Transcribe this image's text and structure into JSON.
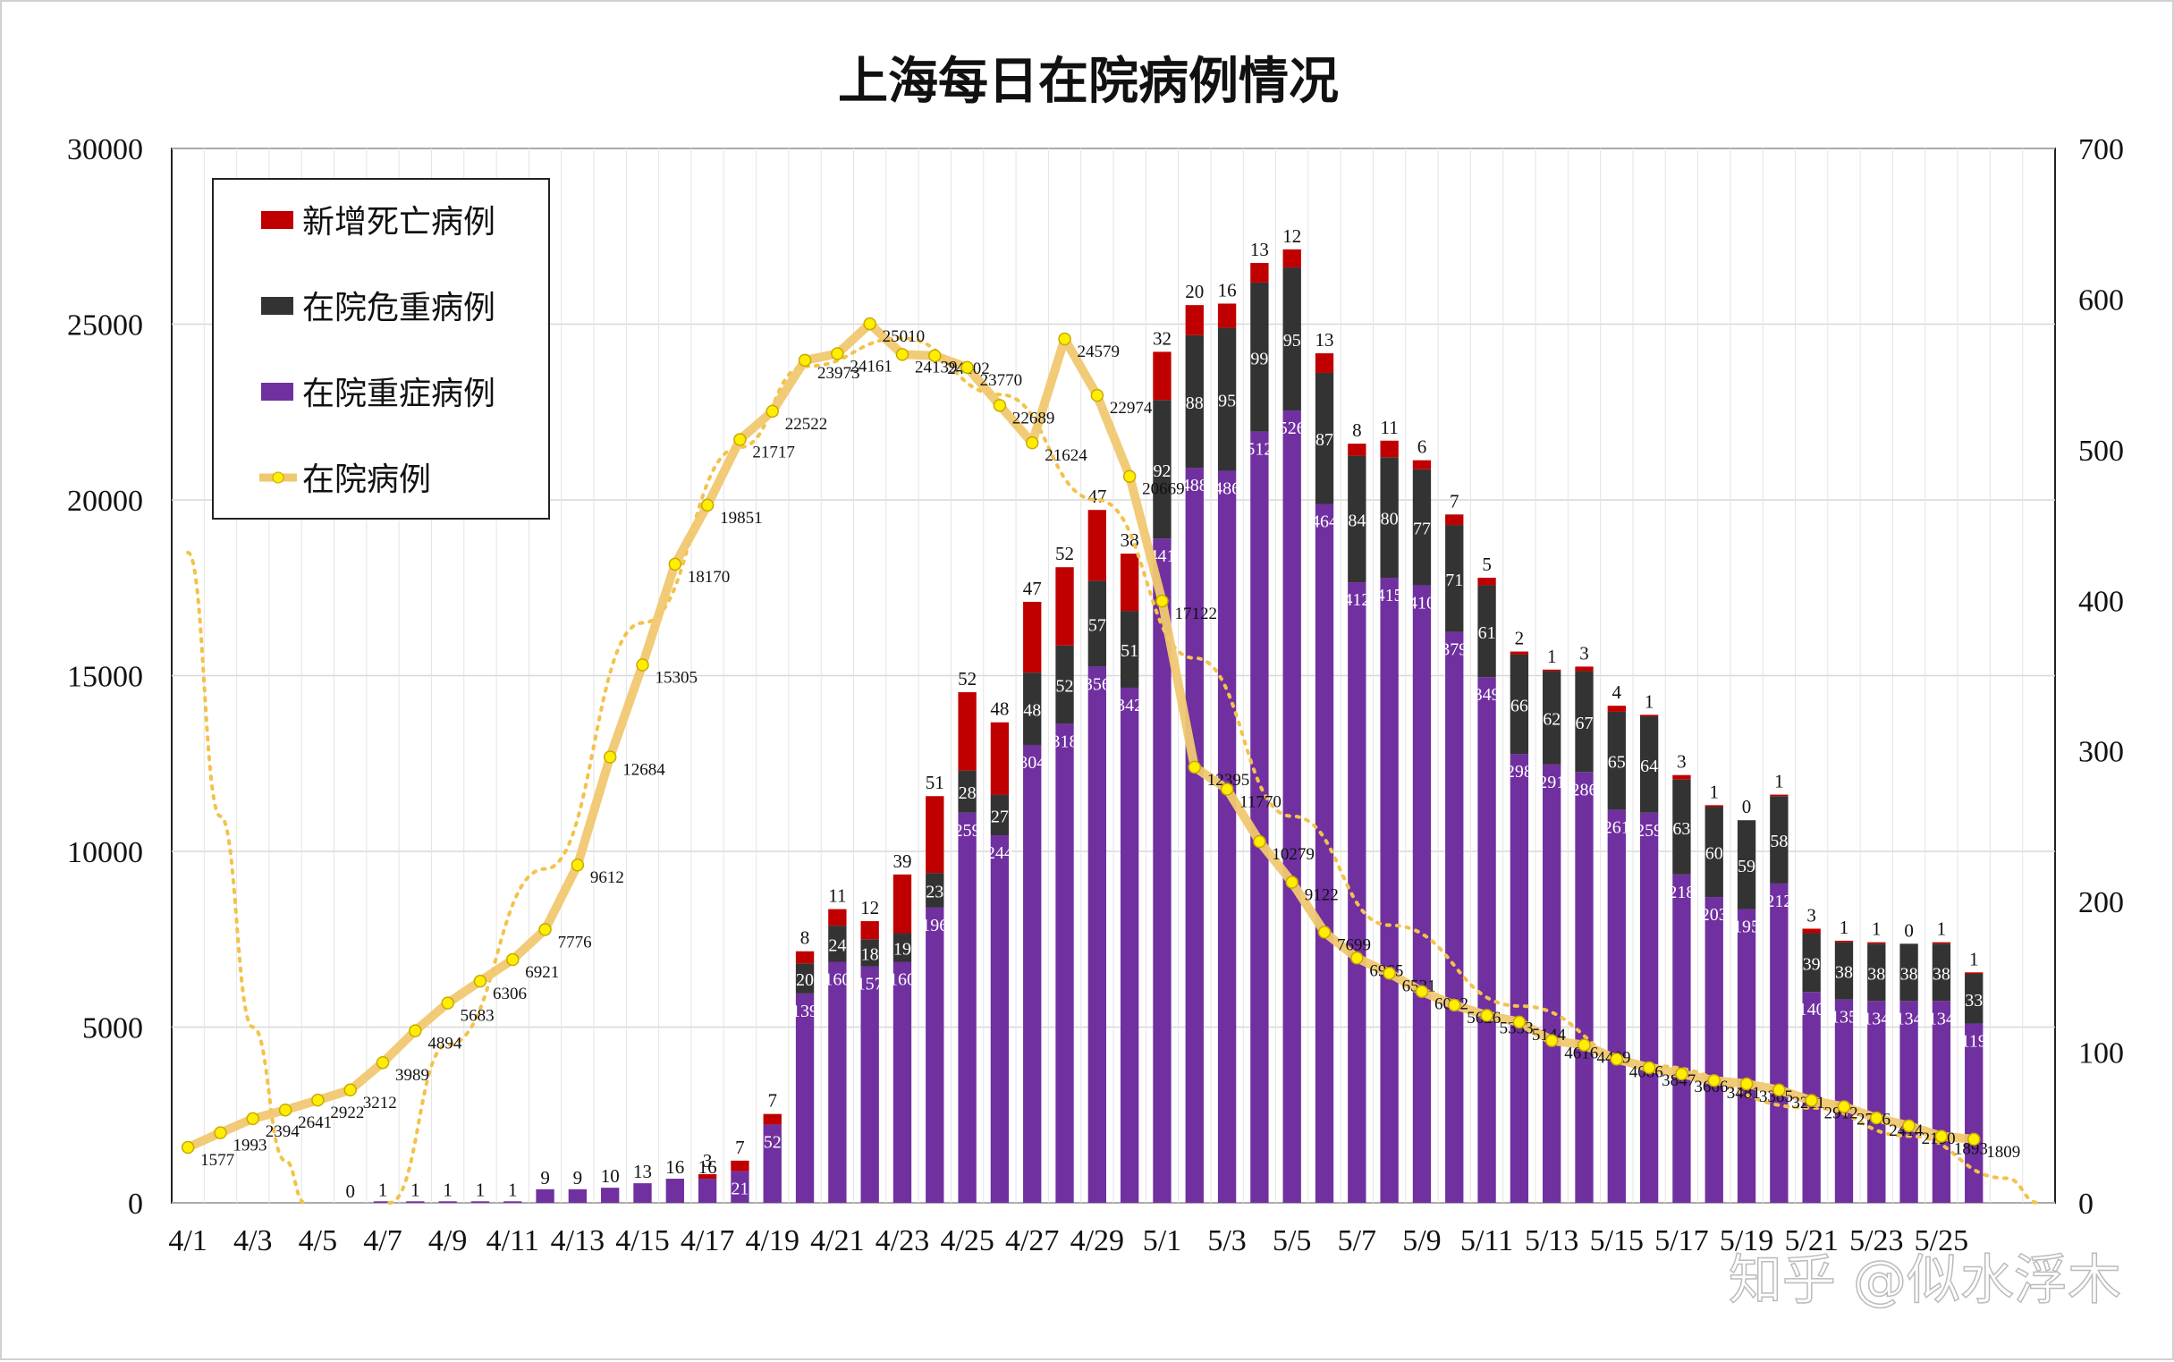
{
  "watermark": "知乎 @似水浮木",
  "chart_data": {
    "type": "bar",
    "title": "上海每日在院病例情况",
    "categories": [
      "4/1",
      "4/2",
      "4/3",
      "4/4",
      "4/5",
      "4/6",
      "4/7",
      "4/8",
      "4/9",
      "4/10",
      "4/11",
      "4/12",
      "4/13",
      "4/14",
      "4/15",
      "4/16",
      "4/17",
      "4/18",
      "4/19",
      "4/20",
      "4/21",
      "4/22",
      "4/23",
      "4/24",
      "4/25",
      "4/26",
      "4/27",
      "4/28",
      "4/29",
      "4/30",
      "5/1",
      "5/2",
      "5/3",
      "5/4",
      "5/5",
      "5/6",
      "5/7",
      "5/8",
      "5/9",
      "5/10",
      "5/11",
      "5/12",
      "5/13",
      "5/14",
      "5/15",
      "5/16",
      "5/17",
      "5/18",
      "5/19",
      "5/20",
      "5/21",
      "5/22",
      "5/23",
      "5/24",
      "5/25",
      "5/26",
      "5/27",
      "5/28"
    ],
    "x_tick_labels": [
      "4/1",
      "4/3",
      "4/5",
      "4/7",
      "4/9",
      "4/11",
      "4/13",
      "4/15",
      "4/17",
      "4/19",
      "4/21",
      "4/23",
      "4/25",
      "4/27",
      "4/29",
      "5/1",
      "5/3",
      "5/5",
      "5/7",
      "5/9",
      "5/11",
      "5/13",
      "5/15",
      "5/17",
      "5/19",
      "5/21",
      "5/23",
      "5/25"
    ],
    "y_left": {
      "ylim": [
        0,
        30000
      ],
      "ticks": [
        "0",
        "5000",
        "10000",
        "15000",
        "20000",
        "25000",
        "30000"
      ]
    },
    "y_right": {
      "ylim": [
        0,
        700
      ],
      "ticks": [
        "0",
        "100",
        "200",
        "300",
        "400",
        "500",
        "600",
        "700"
      ]
    },
    "grid": true,
    "legend_position": "top-left",
    "legend": [
      {
        "label": "新增死亡病例",
        "color": "#c00000",
        "kind": "bar"
      },
      {
        "label": "在院危重病例",
        "color": "#333333",
        "kind": "bar"
      },
      {
        "label": "在院重症病例",
        "color": "#7030a0",
        "kind": "bar"
      },
      {
        "label": "在院病例",
        "color": "#f0c870",
        "kind": "line"
      }
    ],
    "series": [
      {
        "name": "在院重症病例",
        "axis": "right",
        "color": "#7030a0",
        "values": [
          0,
          0,
          0,
          0,
          0,
          0,
          1,
          1,
          1,
          1,
          1,
          9,
          9,
          10,
          13,
          16,
          16,
          21,
          52,
          139,
          160,
          157,
          160,
          196,
          259,
          244,
          304,
          318,
          356,
          342,
          441,
          488,
          486,
          512,
          526,
          464,
          412,
          415,
          410,
          379,
          349,
          298,
          291,
          286,
          261,
          259,
          218,
          203,
          195,
          212,
          140,
          135,
          134,
          134,
          134,
          119,
          0,
          0
        ],
        "labels": [
          "",
          "",
          "",
          "",
          "",
          "0",
          "1",
          "1",
          "1",
          "1",
          "1",
          "9",
          "9",
          "10",
          "13",
          "16",
          "16",
          "21",
          "52",
          "139",
          "160",
          "157",
          "160",
          "196",
          "259",
          "244",
          "304",
          "318",
          "356",
          "342",
          "441",
          "488",
          "486",
          "512",
          "526",
          "464",
          "412",
          "415",
          "410",
          "379",
          "349",
          "298",
          "291",
          "286",
          "261",
          "259",
          "218",
          "203",
          "195",
          "212",
          "140",
          "135",
          "134",
          "134",
          "134",
          "119",
          "",
          ""
        ]
      },
      {
        "name": "在院危重病例",
        "axis": "right",
        "color": "#333333",
        "values": [
          0,
          0,
          0,
          0,
          0,
          0,
          0,
          0,
          0,
          0,
          0,
          0,
          0,
          0,
          0,
          0,
          0,
          0,
          0,
          20,
          24,
          18,
          19,
          23,
          28,
          27,
          48,
          52,
          57,
          51,
          92,
          88,
          95,
          99,
          95,
          87,
          84,
          80,
          77,
          71,
          61,
          66,
          62,
          67,
          65,
          64,
          63,
          60,
          59,
          58,
          39,
          38,
          38,
          38,
          38,
          33,
          0,
          0
        ],
        "labels": [
          "",
          "",
          "",
          "",
          "",
          "",
          "",
          "",
          "",
          "",
          "",
          "",
          "",
          "",
          "",
          "",
          "",
          "",
          "",
          "20",
          "24",
          "18",
          "19",
          "23",
          "28",
          "27",
          "48",
          "52",
          "57",
          "51",
          "92",
          "88",
          "95",
          "99",
          "95",
          "87",
          "84",
          "80",
          "77",
          "71",
          "61",
          "66",
          "62",
          "67",
          "65",
          "64",
          "63",
          "60",
          "59",
          "58",
          "39",
          "38",
          "38",
          "38",
          "38",
          "33",
          "",
          ""
        ]
      },
      {
        "name": "新增死亡病例",
        "axis": "right",
        "color": "#c00000",
        "values": [
          0,
          0,
          0,
          0,
          0,
          0,
          0,
          0,
          0,
          0,
          0,
          0,
          0,
          0,
          0,
          0,
          3,
          7,
          7,
          8,
          11,
          12,
          39,
          51,
          52,
          48,
          47,
          52,
          47,
          38,
          32,
          20,
          16,
          13,
          12,
          13,
          8,
          11,
          6,
          7,
          5,
          2,
          1,
          3,
          4,
          1,
          3,
          1,
          0,
          1,
          3,
          1,
          1,
          0,
          1,
          1,
          0,
          0
        ],
        "labels": [
          "",
          "",
          "",
          "",
          "",
          "",
          "",
          "",
          "",
          "",
          "",
          "",
          "",
          "",
          "",
          "",
          "3",
          "7",
          "7",
          "8",
          "11",
          "12",
          "39",
          "51",
          "52",
          "48",
          "47",
          "52",
          "47",
          "38",
          "32",
          "20",
          "16",
          "13",
          "12",
          "13",
          "8",
          "11",
          "6",
          "7",
          "5",
          "2",
          "1",
          "3",
          "4",
          "1",
          "3",
          "1",
          "0",
          "1",
          "3",
          "1",
          "1",
          "0",
          "1",
          "1",
          "",
          ""
        ]
      },
      {
        "name": "在院病例",
        "axis": "left",
        "color": "#f0c870",
        "values": [
          1577,
          1993,
          2394,
          2641,
          2922,
          3212,
          3989,
          4894,
          5683,
          6306,
          6921,
          7776,
          9612,
          12684,
          15305,
          18170,
          19851,
          21717,
          22522,
          23973,
          24161,
          25010,
          24139,
          24102,
          23770,
          22689,
          21624,
          24579,
          22974,
          20669,
          17122,
          12395,
          11770,
          10279,
          9122,
          7699,
          6965,
          6531,
          6012,
          5626,
          5333,
          5144,
          4616,
          4489,
          4086,
          3847,
          3666,
          3481,
          3385,
          3211,
          2912,
          2736,
          2414,
          2190,
          1893,
          1809,
          null,
          null
        ]
      }
    ]
  }
}
